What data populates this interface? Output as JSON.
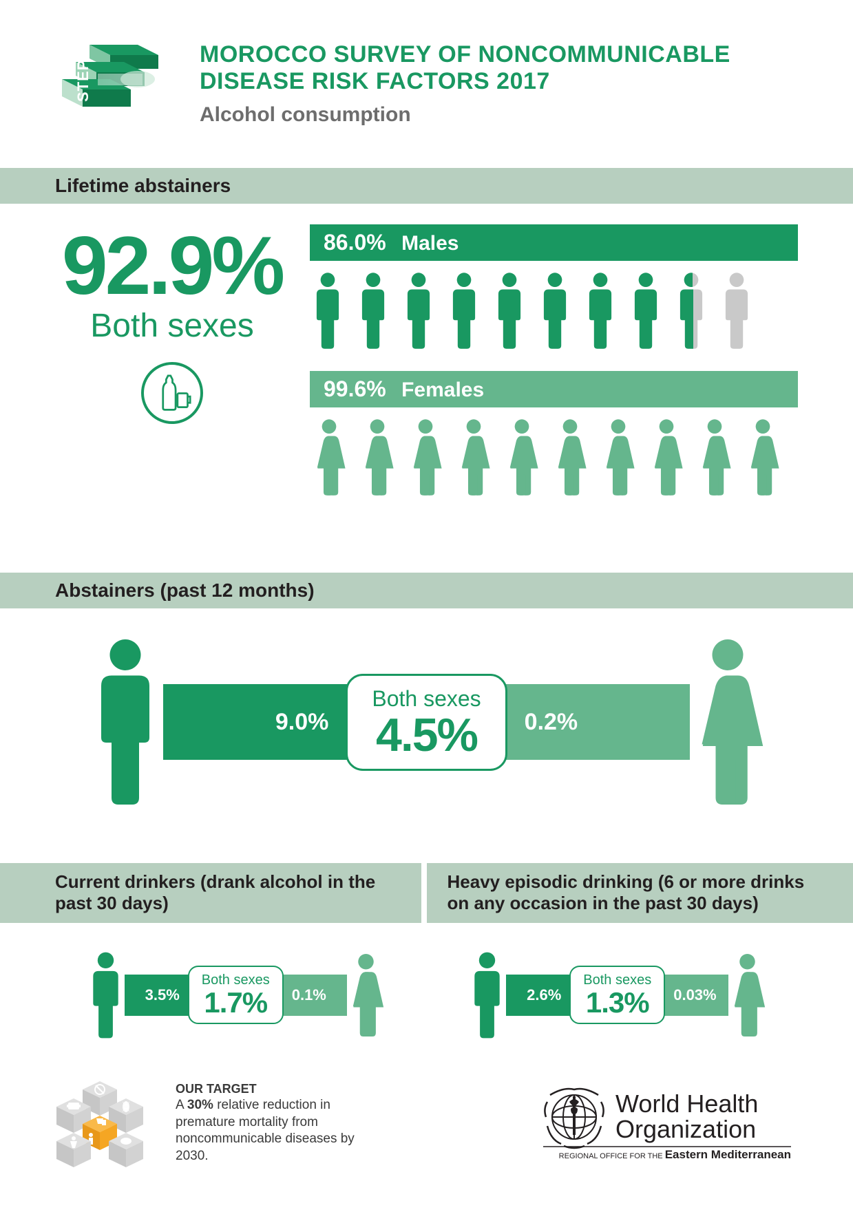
{
  "colors": {
    "primary_green": "#199861",
    "light_green": "#65b68d",
    "pale_green": "#b7cfbf",
    "grey_icon": "#c9c9c9",
    "text_dark": "#3a3a3a",
    "text_grey": "#6d6d6d",
    "cube_grey": "#cfcfcf",
    "cube_orange": "#f5a11a",
    "white": "#ffffff",
    "black": "#231f20"
  },
  "typography": {
    "title_fontsize": 34,
    "subtitle_fontsize": 30,
    "section_header_fontsize": 28,
    "big_pct_fontsize": 120,
    "big_label_fontsize": 48,
    "stat_bar_fontsize": 30,
    "both_box_pct_fontsize": 68,
    "small_box_pct_fontsize": 42,
    "footer_fontsize": 19
  },
  "header": {
    "title_line1": "MOROCCO SURVEY OF NONCOMMUNICABLE",
    "title_line2": "DISEASE RISK FACTORS 2017",
    "subtitle": "Alcohol consumption",
    "logo_label": "STEPS"
  },
  "section1": {
    "header": "Lifetime abstainers",
    "both_pct": "92.9%",
    "both_label": "Both sexes",
    "male_pct": "86.0%",
    "male_label": "Males",
    "male_filled": 8,
    "male_partial": 1,
    "male_grey": 1,
    "male_partial_ratio": 0.6,
    "female_pct": "99.6%",
    "female_label": "Females",
    "female_filled": 10,
    "female_grey": 0,
    "icon_count": 10
  },
  "section2": {
    "header": "Abstainers (past 12 months)",
    "male_pct": "9.0%",
    "both_label": "Both sexes",
    "both_pct": "4.5%",
    "female_pct": "0.2%"
  },
  "section3": {
    "header": "Current drinkers (drank alcohol in the past 30 days)",
    "male_pct": "3.5%",
    "both_label": "Both sexes",
    "both_pct": "1.7%",
    "female_pct": "0.1%"
  },
  "section4": {
    "header": "Heavy episodic drinking (6 or more drinks on any occasion in the past 30 days)",
    "male_pct": "2.6%",
    "both_label": "Both sexes",
    "both_pct": "1.3%",
    "female_pct": "0.03%"
  },
  "footer": {
    "target_title": "OUR TARGET",
    "target_pre": "A ",
    "target_bold": "30%",
    "target_post": " relative reduction in premature mortality from noncommunicable diseases by 2030.",
    "who_line1": "World Health",
    "who_line2": "Organization",
    "who_region_pre": "REGIONAL OFFICE FOR THE ",
    "who_region": "Eastern Mediterranean"
  }
}
